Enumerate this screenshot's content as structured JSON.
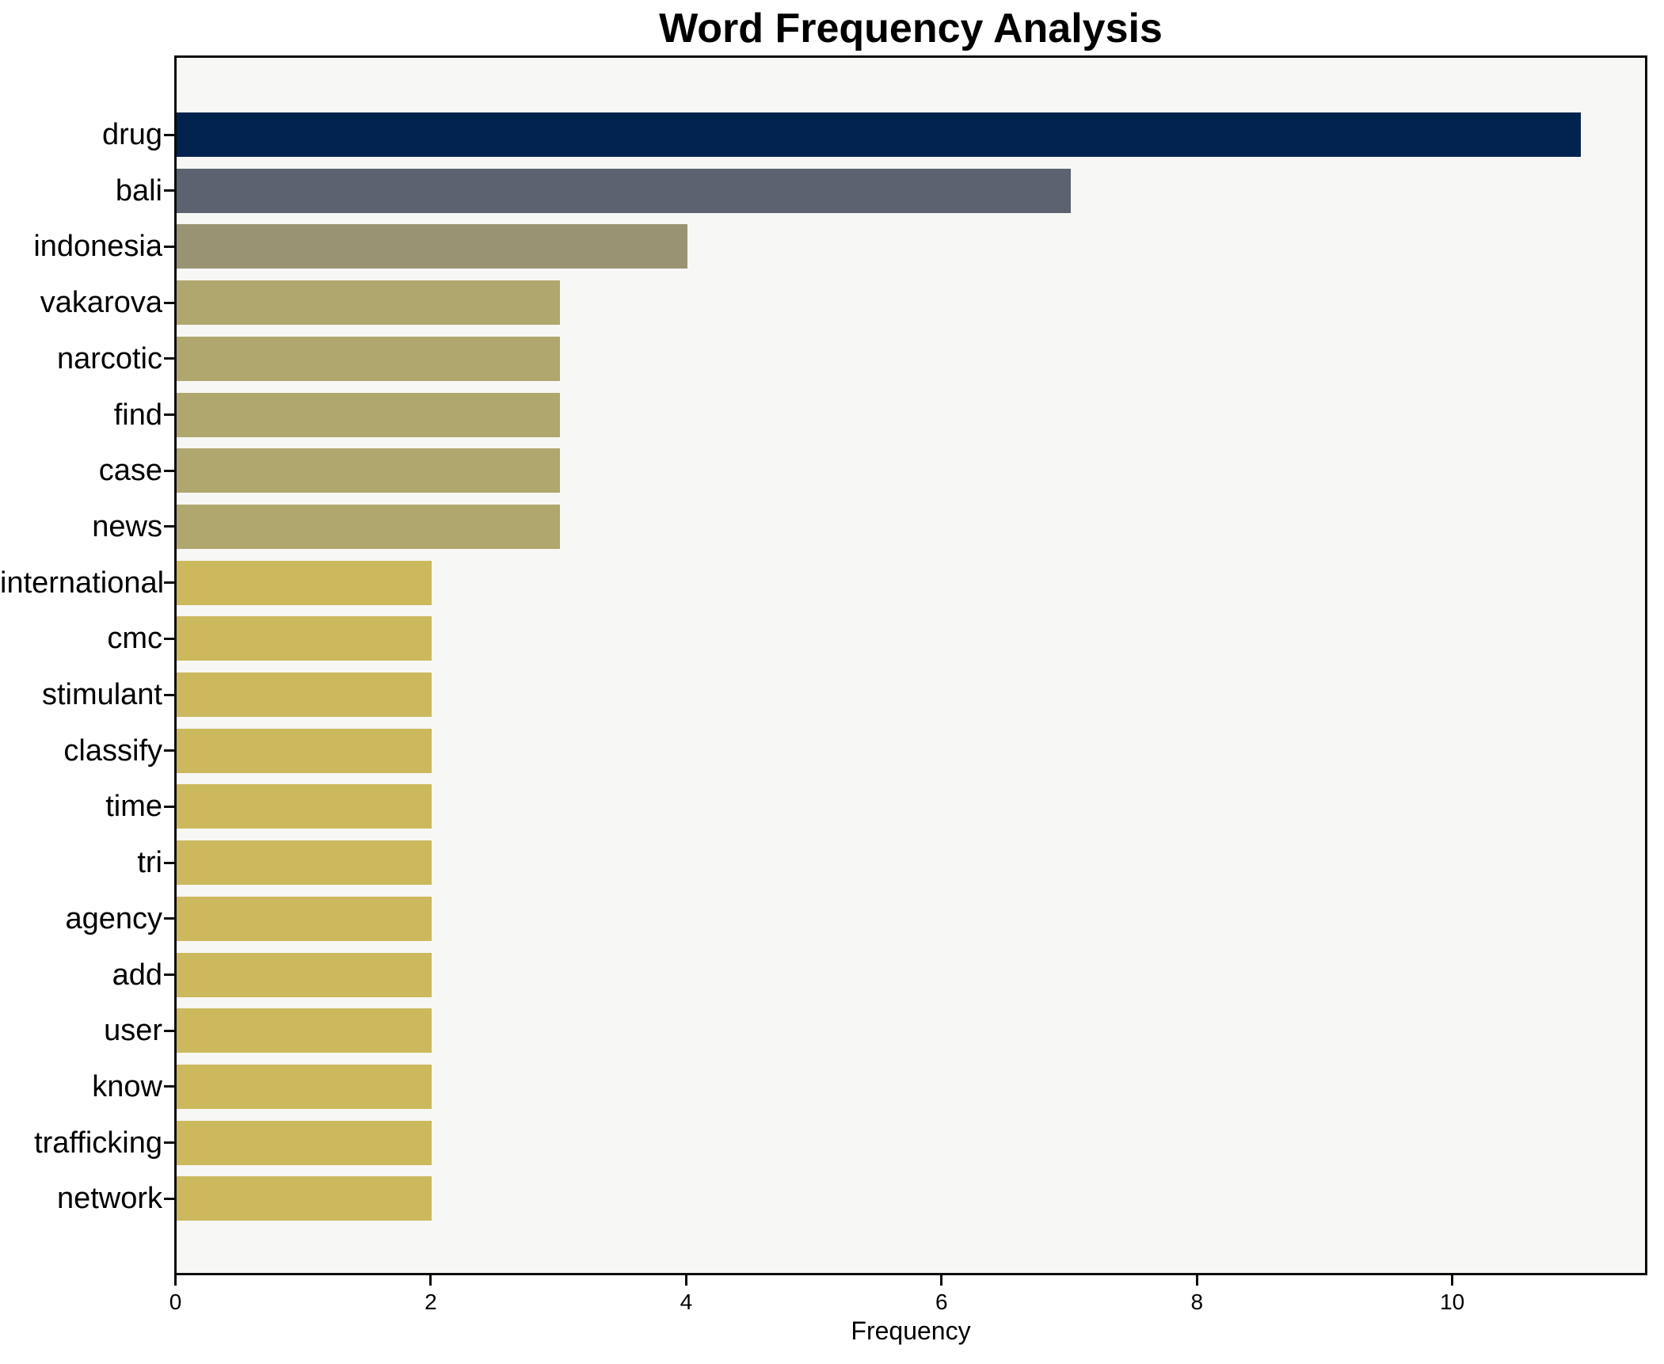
{
  "chart_data": {
    "type": "bar",
    "orientation": "horizontal",
    "title": "Word Frequency Analysis",
    "xlabel": "Frequency",
    "ylabel": "",
    "categories": [
      "drug",
      "bali",
      "indonesia",
      "vakarova",
      "narcotic",
      "find",
      "case",
      "news",
      "international",
      "cmc",
      "stimulant",
      "classify",
      "time",
      "tri",
      "agency",
      "add",
      "user",
      "know",
      "trafficking",
      "network"
    ],
    "values": [
      11,
      7,
      4,
      3,
      3,
      3,
      3,
      3,
      2,
      2,
      2,
      2,
      2,
      2,
      2,
      2,
      2,
      2,
      2,
      2
    ],
    "bar_colors": [
      "#01234e",
      "#5d6270",
      "#9a9373",
      "#b0a76e",
      "#b0a76e",
      "#b0a76e",
      "#b0a76e",
      "#b0a76e",
      "#ccb95e",
      "#ccb95e",
      "#ccb95e",
      "#ccb95e",
      "#ccb95e",
      "#ccb95e",
      "#ccb95e",
      "#ccb95e",
      "#ccb95e",
      "#ccb95e",
      "#ccb95e",
      "#ccb95e"
    ],
    "xlim": [
      0,
      11.5
    ],
    "xticks": [
      0,
      2,
      4,
      6,
      8,
      10
    ],
    "grid": false,
    "legend": "none",
    "plot_bg": "#f7f7f5",
    "figure_bg": "#ffffff",
    "axis_color": "#0a0a0a"
  }
}
